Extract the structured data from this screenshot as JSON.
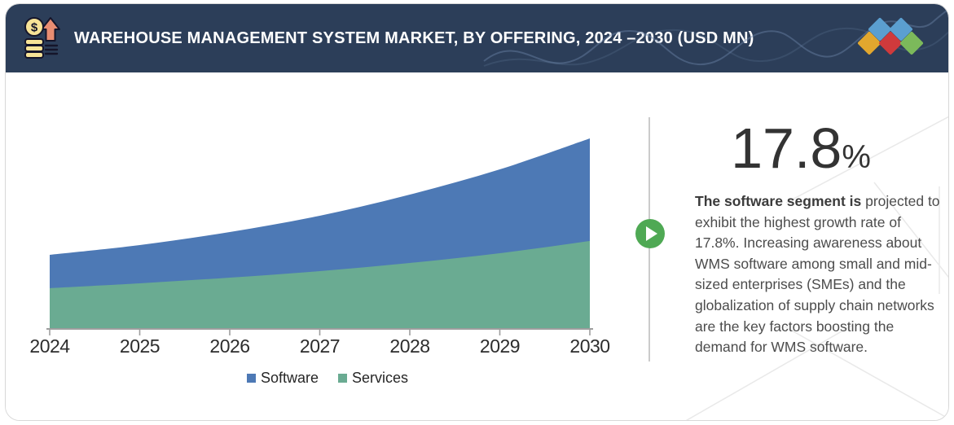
{
  "header": {
    "title": "WAREHOUSE MANAGEMENT SYSTEM MARKET, BY OFFERING, 2024  –2030 (USD MN)",
    "icon": "money-growth-icon",
    "background": "#2c3e59",
    "logo_diamond_colors": [
      "#e2a72e",
      "#5b9fd0",
      "#cf3a3c",
      "#5b9fd0",
      "#7cb95b"
    ]
  },
  "chart_data": {
    "type": "area",
    "stacked": true,
    "title": "Warehouse Management System Market, by Offering, 2024–2030 (USD MN)",
    "categories": [
      "2024",
      "2025",
      "2026",
      "2027",
      "2028",
      "2029",
      "2030"
    ],
    "series": [
      {
        "name": "Software",
        "color": "#4d79b5",
        "values": [
          41,
          47,
          56,
          68,
          84,
          103,
          126
        ]
      },
      {
        "name": "Services",
        "color": "#6aab92",
        "values": [
          50,
          56,
          63,
          71,
          81,
          93,
          108
        ]
      }
    ],
    "value_note": "relative units estimated from pixels; no y-axis shown in figure",
    "xlabel": "",
    "ylabel": "",
    "y_axis_visible": false,
    "grid": false,
    "legend_position": "bottom",
    "axis_color": "#9e9e9e",
    "label_color": "#2d2d2d"
  },
  "insight": {
    "stat_value": "17.8",
    "stat_unit": "%",
    "lead_bold": "The software segment is ",
    "body": "projected to exhibit the highest growth rate of 17.8%. Increasing awareness about WMS software among small and mid-sized enterprises (SMEs) and the globalization of supply chain networks are the key factors boosting the demand for WMS software."
  },
  "play_button": {
    "icon": "play-icon",
    "color": "#4fa954"
  }
}
